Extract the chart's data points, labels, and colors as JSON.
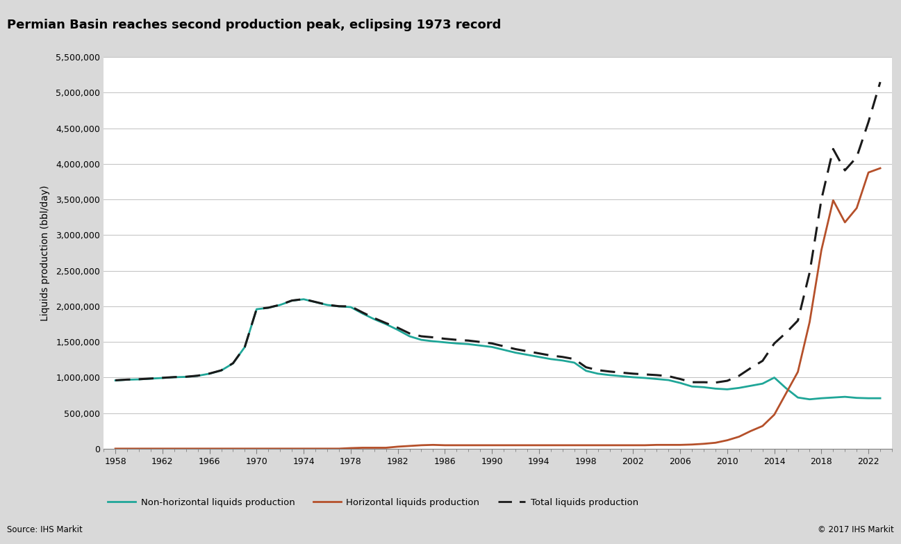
{
  "title": "Permian Basin reaches second production peak, eclipsing 1973 record",
  "ylabel": "Liquids production (bbl/day)",
  "source_left": "Source: IHS Markit",
  "source_right": "© 2017 IHS Markit",
  "background_color": "#d9d9d9",
  "plot_bg_color": "#ffffff",
  "teal_color": "#1fa698",
  "orange_color": "#b5502a",
  "black_color": "#1a1a1a",
  "ylim": [
    0,
    5500000
  ],
  "yticks": [
    0,
    500000,
    1000000,
    1500000,
    2000000,
    2500000,
    3000000,
    3500000,
    4000000,
    4500000,
    5000000,
    5500000
  ],
  "xticks": [
    1958,
    1962,
    1966,
    1970,
    1974,
    1978,
    1982,
    1986,
    1990,
    1994,
    1998,
    2002,
    2006,
    2010,
    2014,
    2018,
    2022
  ],
  "non_horiz": {
    "years": [
      1958,
      1959,
      1960,
      1961,
      1962,
      1963,
      1964,
      1965,
      1966,
      1967,
      1968,
      1969,
      1970,
      1971,
      1972,
      1973,
      1974,
      1975,
      1976,
      1977,
      1978,
      1979,
      1980,
      1981,
      1982,
      1983,
      1984,
      1985,
      1986,
      1987,
      1988,
      1989,
      1990,
      1991,
      1992,
      1993,
      1994,
      1995,
      1996,
      1997,
      1998,
      1999,
      2000,
      2001,
      2002,
      2003,
      2004,
      2005,
      2006,
      2007,
      2008,
      2009,
      2010,
      2011,
      2012,
      2013,
      2014,
      2015,
      2016,
      2017,
      2018,
      2019,
      2020,
      2021,
      2022,
      2023
    ],
    "values": [
      960000,
      970000,
      975000,
      985000,
      995000,
      1005000,
      1010000,
      1025000,
      1055000,
      1100000,
      1200000,
      1430000,
      1960000,
      1980000,
      2020000,
      2080000,
      2100000,
      2060000,
      2020000,
      2000000,
      1990000,
      1900000,
      1820000,
      1750000,
      1670000,
      1580000,
      1530000,
      1510000,
      1495000,
      1480000,
      1470000,
      1450000,
      1430000,
      1390000,
      1350000,
      1320000,
      1290000,
      1260000,
      1240000,
      1210000,
      1095000,
      1055000,
      1035000,
      1020000,
      1005000,
      995000,
      980000,
      965000,
      925000,
      875000,
      865000,
      845000,
      835000,
      855000,
      885000,
      915000,
      1000000,
      850000,
      720000,
      695000,
      710000,
      720000,
      730000,
      715000,
      710000,
      710000
    ]
  },
  "horiz": {
    "years": [
      1958,
      1959,
      1960,
      1961,
      1962,
      1963,
      1964,
      1965,
      1966,
      1967,
      1968,
      1969,
      1970,
      1971,
      1972,
      1973,
      1974,
      1975,
      1976,
      1977,
      1978,
      1979,
      1980,
      1981,
      1982,
      1983,
      1984,
      1985,
      1986,
      1987,
      1988,
      1989,
      1990,
      1991,
      1992,
      1993,
      1994,
      1995,
      1996,
      1997,
      1998,
      1999,
      2000,
      2001,
      2002,
      2003,
      2004,
      2005,
      2006,
      2007,
      2008,
      2009,
      2010,
      2011,
      2012,
      2013,
      2014,
      2015,
      2016,
      2017,
      2018,
      2019,
      2020,
      2021,
      2022,
      2023
    ],
    "values": [
      2000,
      2000,
      2000,
      2000,
      2000,
      2000,
      2000,
      2000,
      2000,
      2000,
      2000,
      2000,
      2000,
      2000,
      2000,
      2000,
      2000,
      2000,
      2000,
      2000,
      10000,
      15000,
      15000,
      15000,
      30000,
      40000,
      50000,
      55000,
      50000,
      50000,
      50000,
      50000,
      50000,
      50000,
      50000,
      50000,
      50000,
      50000,
      50000,
      50000,
      50000,
      50000,
      50000,
      50000,
      50000,
      50000,
      55000,
      55000,
      55000,
      60000,
      70000,
      85000,
      120000,
      170000,
      250000,
      320000,
      480000,
      780000,
      1080000,
      1780000,
      2790000,
      3490000,
      3180000,
      3380000,
      3880000,
      3940000
    ]
  },
  "total": {
    "years": [
      1958,
      1959,
      1960,
      1961,
      1962,
      1963,
      1964,
      1965,
      1966,
      1967,
      1968,
      1969,
      1970,
      1971,
      1972,
      1973,
      1974,
      1975,
      1976,
      1977,
      1978,
      1979,
      1980,
      1981,
      1982,
      1983,
      1984,
      1985,
      1986,
      1987,
      1988,
      1989,
      1990,
      1991,
      1992,
      1993,
      1994,
      1995,
      1996,
      1997,
      1998,
      1999,
      2000,
      2001,
      2002,
      2003,
      2004,
      2005,
      2006,
      2007,
      2008,
      2009,
      2010,
      2011,
      2012,
      2013,
      2014,
      2015,
      2016,
      2017,
      2018,
      2019,
      2020,
      2021,
      2022,
      2023
    ],
    "values": [
      962000,
      972000,
      977000,
      987000,
      997000,
      1007000,
      1012000,
      1027000,
      1057000,
      1102000,
      1202000,
      1432000,
      1962000,
      1982000,
      2022000,
      2082000,
      2102000,
      2062000,
      2022000,
      2002000,
      2000000,
      1915000,
      1835000,
      1765000,
      1700000,
      1620000,
      1580000,
      1565000,
      1545000,
      1530000,
      1520000,
      1500000,
      1480000,
      1440000,
      1400000,
      1370000,
      1340000,
      1310000,
      1290000,
      1260000,
      1145000,
      1105000,
      1085000,
      1070000,
      1055000,
      1045000,
      1035000,
      1020000,
      980000,
      935000,
      935000,
      930000,
      955000,
      1025000,
      1135000,
      1235000,
      1480000,
      1630000,
      1800000,
      2475000,
      3500000,
      4210000,
      3910000,
      4095000,
      4590000,
      5150000
    ]
  },
  "legend_entries": [
    {
      "label": "Non-horizontal liquids production",
      "color": "#1fa698",
      "linestyle": "solid"
    },
    {
      "label": "Horizontal liquids production",
      "color": "#b5502a",
      "linestyle": "solid"
    },
    {
      "label": "Total liquids production",
      "color": "#1a1a1a",
      "linestyle": "dashed"
    }
  ]
}
